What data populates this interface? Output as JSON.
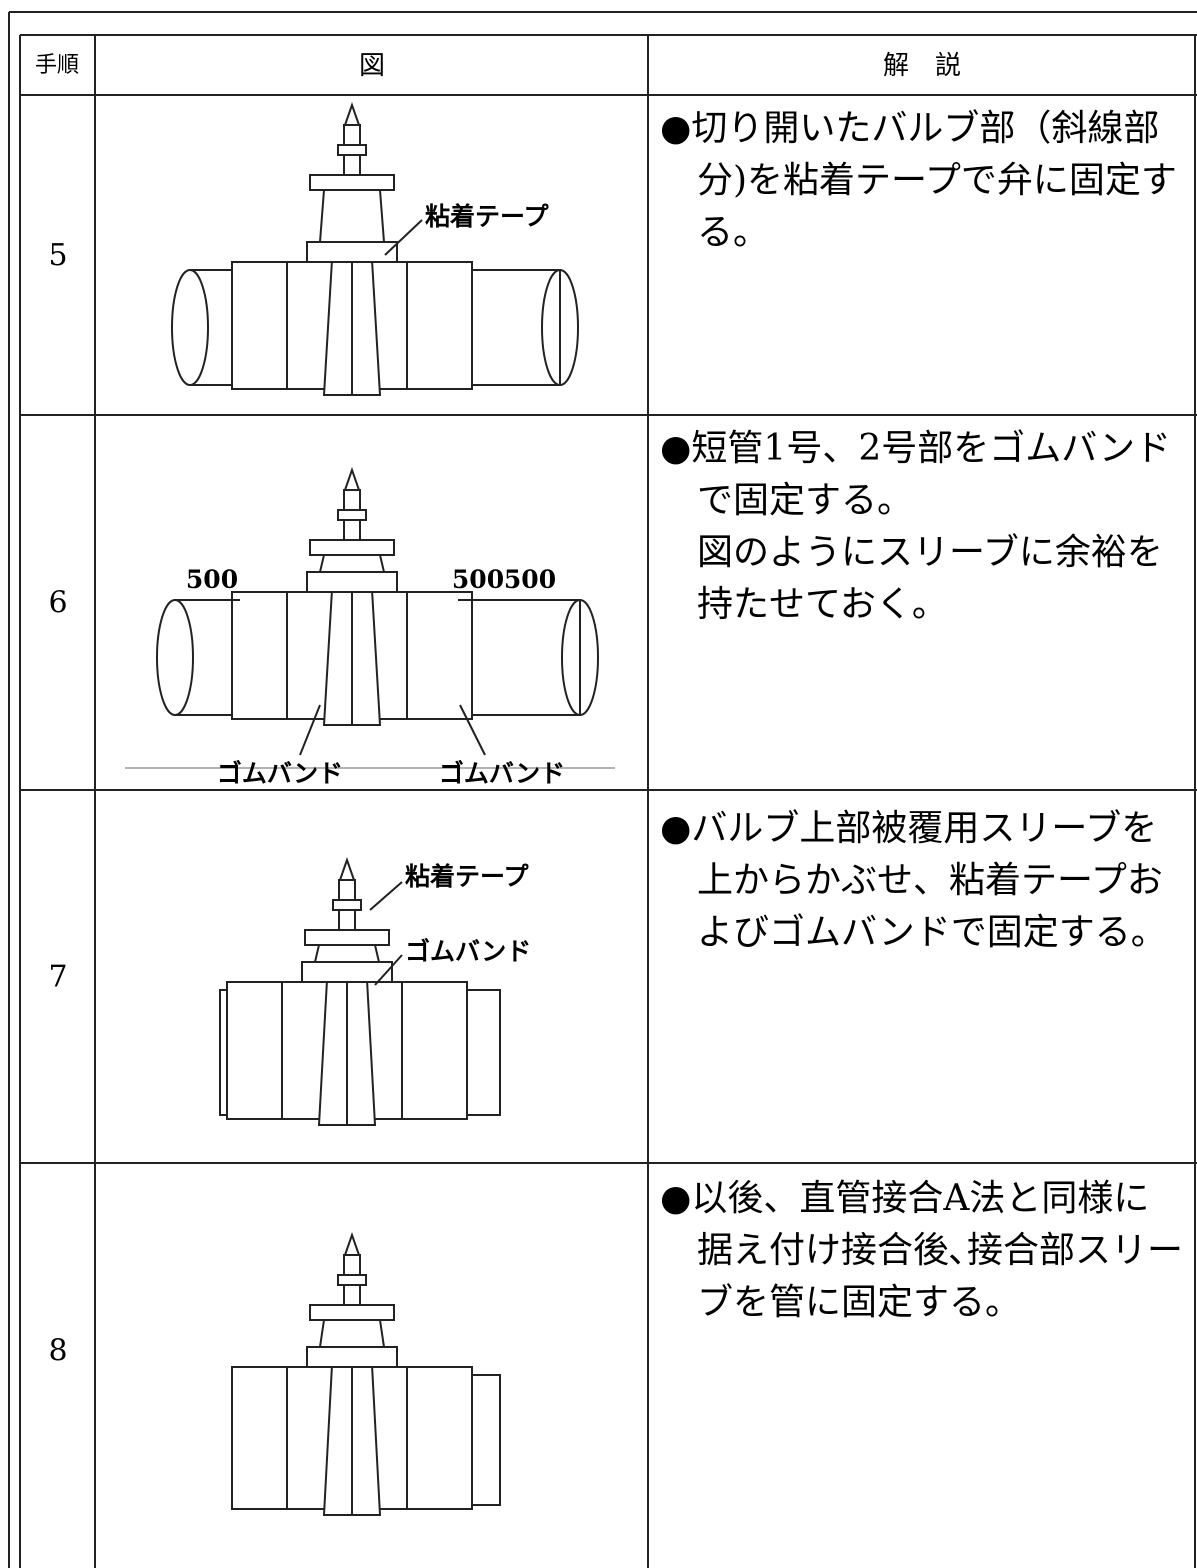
{
  "table": {
    "header": [
      "手順",
      "図",
      "解　説"
    ],
    "rows": [
      {
        "step": "5",
        "figure_labels": [
          "粘着テープ"
        ],
        "explanation": [
          "●切り開いたバルブ部（斜線部",
          "分)を粘着テープで弁に固定す",
          "る。"
        ]
      },
      {
        "step": "6",
        "figure_labels": [
          "500",
          "500",
          "500",
          "ゴムバンド",
          "ゴムバンド"
        ],
        "explanation": [
          "●短管1号、2号部をゴムバンド",
          "で固定する。",
          "図のようにスリーブに余裕を",
          "持たせておく。"
        ]
      },
      {
        "step": "7",
        "figure_labels": [
          "粘着テープ",
          "ゴムバンド"
        ],
        "explanation": [
          "●バルブ上部被覆用スリーブを",
          "上からかぶせ、粘着テープお",
          "よびゴムバンドで固定する。"
        ]
      },
      {
        "step": "8",
        "figure_labels": [],
        "explanation": [
          "●以後、直管接合A法と同様に",
          "据え付け接合後､接合部スリー",
          "ブを管に固定する。"
        ]
      }
    ]
  }
}
